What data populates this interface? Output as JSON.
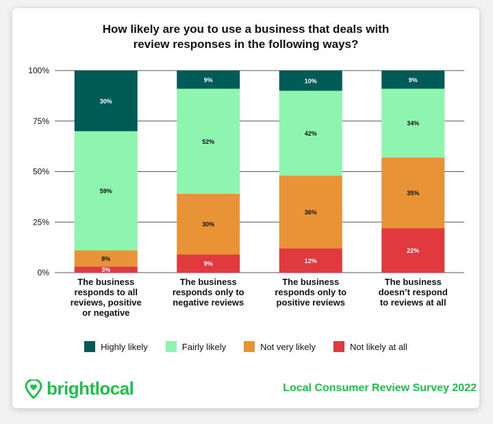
{
  "chart_data": {
    "type": "bar",
    "stacked": true,
    "title_lines": [
      "How likely are you to use a business that deals with",
      "review responses in the following ways?"
    ],
    "categories": [
      [
        "The business",
        "responds to all",
        "reviews, positive",
        "or negative"
      ],
      [
        "The business",
        "responds only to",
        "negative reviews"
      ],
      [
        "The business",
        "responds only to",
        "positive reviews"
      ],
      [
        "The business",
        "doesn’t respond",
        "to reviews at all"
      ]
    ],
    "series": [
      {
        "name": "Not likely at all",
        "color": "#e03a3e",
        "values": [
          3,
          9,
          12,
          22
        ]
      },
      {
        "name": "Not very likely",
        "color": "#e89436",
        "values": [
          8,
          30,
          36,
          35
        ]
      },
      {
        "name": "Fairly likely",
        "color": "#8ef5b0",
        "values": [
          59,
          52,
          42,
          34
        ]
      },
      {
        "name": "Highly likely",
        "color": "#005a55",
        "values": [
          30,
          9,
          10,
          9
        ]
      }
    ],
    "legend_order": [
      "Highly likely",
      "Fairly likely",
      "Not very likely",
      "Not likely at all"
    ],
    "yticks": [
      0,
      25,
      50,
      75,
      100
    ],
    "ytick_labels": [
      "0%",
      "25%",
      "50%",
      "75%",
      "100%"
    ],
    "ylim": [
      0,
      100
    ],
    "grid": true,
    "legend_position": "bottom"
  },
  "brand": {
    "logo_text": "brightlocal",
    "survey_text": "Local Consumer Review Survey 2022",
    "accent_color": "#1ec04a"
  }
}
